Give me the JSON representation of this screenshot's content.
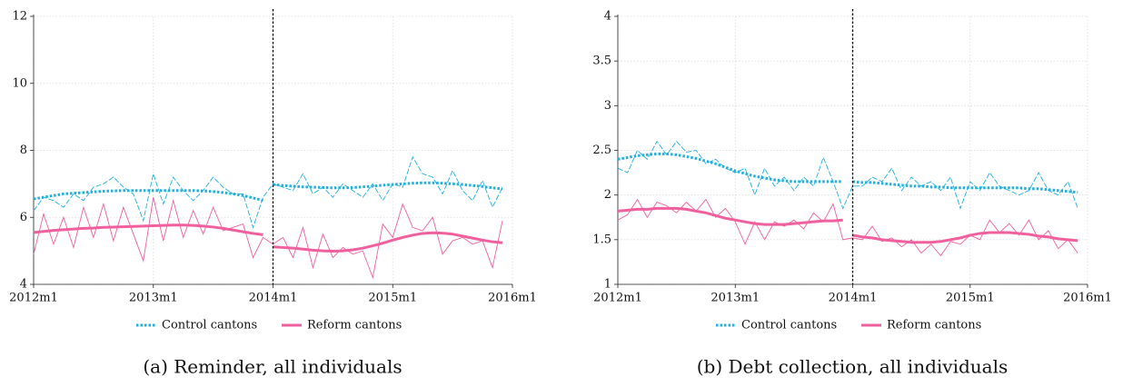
{
  "chart_data": [
    {
      "type": "line",
      "caption": "(a) Reminder, all individuals",
      "x": [
        624,
        625,
        626,
        627,
        628,
        629,
        630,
        631,
        632,
        633,
        634,
        635,
        636,
        637,
        638,
        639,
        640,
        641,
        642,
        643,
        644,
        645,
        646,
        647,
        648,
        649,
        650,
        651,
        652,
        653,
        654,
        655,
        656,
        657,
        658,
        659,
        660,
        661,
        662,
        663,
        664,
        665,
        666,
        667,
        668,
        669,
        670,
        671
      ],
      "xlim": [
        624,
        672
      ],
      "xticks": [
        {
          "value": 624,
          "label": "2012m1"
        },
        {
          "value": 636,
          "label": "2013m1"
        },
        {
          "value": 648,
          "label": "2014m1"
        },
        {
          "value": 660,
          "label": "2015m1"
        },
        {
          "value": 672,
          "label": "2016m1"
        }
      ],
      "ylim": [
        4,
        12
      ],
      "yticks": [
        4,
        6,
        8,
        10,
        12
      ],
      "grid": true,
      "xline": 648,
      "series": [
        {
          "name": "Control cantons",
          "color": "#1fb0e0",
          "style": "dotted",
          "values": [
            6.2,
            6.6,
            6.5,
            6.3,
            6.7,
            6.5,
            6.9,
            7.0,
            7.2,
            6.9,
            6.7,
            5.9,
            7.3,
            6.4,
            7.2,
            6.8,
            6.5,
            6.8,
            7.2,
            6.9,
            6.7,
            6.7,
            5.7,
            6.6,
            7.0,
            6.9,
            6.8,
            7.3,
            6.7,
            6.9,
            6.6,
            7.0,
            6.8,
            6.6,
            7.0,
            6.5,
            7.0,
            6.9,
            7.8,
            7.3,
            7.2,
            6.7,
            7.4,
            6.8,
            6.5,
            7.1,
            6.3,
            6.9
          ],
          "fit": [
            6.55,
            6.6,
            6.65,
            6.7,
            6.72,
            6.74,
            6.76,
            6.78,
            6.79,
            6.8,
            6.8,
            6.8,
            6.8,
            6.8,
            6.8,
            6.8,
            6.8,
            6.79,
            6.77,
            6.74,
            6.7,
            6.65,
            6.58,
            6.5,
            6.98,
            6.95,
            6.93,
            6.91,
            6.9,
            6.89,
            6.88,
            6.88,
            6.89,
            6.91,
            6.93,
            6.96,
            6.98,
            7.0,
            7.02,
            7.03,
            7.03,
            7.02,
            7.0,
            6.98,
            6.95,
            6.92,
            6.88,
            6.85
          ]
        },
        {
          "name": "Reform cantons",
          "color": "#f0609e",
          "style": "solid",
          "values": [
            4.9,
            6.1,
            5.2,
            6.0,
            5.1,
            6.3,
            5.4,
            6.4,
            5.3,
            6.3,
            5.5,
            4.7,
            6.6,
            5.3,
            6.5,
            5.4,
            6.2,
            5.5,
            6.3,
            5.6,
            5.7,
            5.8,
            4.8,
            5.4,
            5.2,
            5.4,
            4.8,
            5.7,
            4.5,
            5.5,
            4.8,
            5.1,
            4.9,
            5.0,
            4.2,
            5.8,
            5.4,
            6.4,
            5.7,
            5.6,
            6.0,
            4.9,
            5.3,
            5.4,
            5.2,
            5.3,
            4.5,
            5.9
          ],
          "fit": [
            5.55,
            5.58,
            5.61,
            5.63,
            5.65,
            5.67,
            5.68,
            5.7,
            5.71,
            5.72,
            5.73,
            5.74,
            5.75,
            5.76,
            5.77,
            5.77,
            5.76,
            5.74,
            5.71,
            5.67,
            5.62,
            5.57,
            5.52,
            5.48,
            5.12,
            5.1,
            5.08,
            5.05,
            5.02,
            5.0,
            4.99,
            5.0,
            5.03,
            5.08,
            5.15,
            5.23,
            5.32,
            5.4,
            5.47,
            5.52,
            5.54,
            5.53,
            5.5,
            5.44,
            5.38,
            5.32,
            5.27,
            5.24
          ]
        }
      ]
    },
    {
      "type": "line",
      "caption": "(b) Debt collection, all individuals",
      "x": [
        624,
        625,
        626,
        627,
        628,
        629,
        630,
        631,
        632,
        633,
        634,
        635,
        636,
        637,
        638,
        639,
        640,
        641,
        642,
        643,
        644,
        645,
        646,
        647,
        648,
        649,
        650,
        651,
        652,
        653,
        654,
        655,
        656,
        657,
        658,
        659,
        660,
        661,
        662,
        663,
        664,
        665,
        666,
        667,
        668,
        669,
        670,
        671
      ],
      "xlim": [
        624,
        672
      ],
      "xticks": [
        {
          "value": 624,
          "label": "2012m1"
        },
        {
          "value": 636,
          "label": "2013m1"
        },
        {
          "value": 648,
          "label": "2014m1"
        },
        {
          "value": 660,
          "label": "2015m1"
        },
        {
          "value": 672,
          "label": "2016m1"
        }
      ],
      "ylim": [
        1,
        4
      ],
      "yticks": [
        1,
        1.5,
        2,
        2.5,
        3,
        3.5,
        4
      ],
      "grid": true,
      "xline": 648,
      "series": [
        {
          "name": "Control cantons",
          "color": "#1fb0e0",
          "style": "dotted",
          "values": [
            2.3,
            2.25,
            2.5,
            2.4,
            2.6,
            2.45,
            2.6,
            2.48,
            2.5,
            2.35,
            2.4,
            2.3,
            2.25,
            2.3,
            2.0,
            2.3,
            2.1,
            2.2,
            2.05,
            2.2,
            2.1,
            2.42,
            2.15,
            1.85,
            2.1,
            2.1,
            2.2,
            2.15,
            2.3,
            2.05,
            2.2,
            2.1,
            2.15,
            2.05,
            2.2,
            1.85,
            2.15,
            2.05,
            2.25,
            2.1,
            2.05,
            2.0,
            2.05,
            2.25,
            2.05,
            2.0,
            2.15,
            1.85
          ],
          "fit": [
            2.4,
            2.42,
            2.44,
            2.45,
            2.46,
            2.46,
            2.45,
            2.43,
            2.41,
            2.38,
            2.35,
            2.31,
            2.27,
            2.24,
            2.21,
            2.19,
            2.17,
            2.16,
            2.15,
            2.15,
            2.15,
            2.15,
            2.15,
            2.15,
            2.15,
            2.14,
            2.14,
            2.13,
            2.12,
            2.11,
            2.1,
            2.1,
            2.09,
            2.09,
            2.08,
            2.08,
            2.08,
            2.08,
            2.08,
            2.08,
            2.08,
            2.08,
            2.07,
            2.07,
            2.06,
            2.05,
            2.04,
            2.03
          ]
        },
        {
          "name": "Reform cantons",
          "color": "#f0609e",
          "style": "solid",
          "values": [
            1.72,
            1.78,
            1.95,
            1.75,
            1.92,
            1.88,
            1.8,
            1.92,
            1.82,
            1.95,
            1.75,
            1.85,
            1.7,
            1.45,
            1.7,
            1.5,
            1.7,
            1.65,
            1.72,
            1.62,
            1.8,
            1.7,
            1.9,
            1.5,
            1.52,
            1.5,
            1.65,
            1.48,
            1.52,
            1.42,
            1.5,
            1.35,
            1.45,
            1.32,
            1.48,
            1.45,
            1.55,
            1.5,
            1.72,
            1.58,
            1.68,
            1.55,
            1.72,
            1.5,
            1.6,
            1.4,
            1.5,
            1.35
          ],
          "fit": [
            1.82,
            1.83,
            1.84,
            1.84,
            1.85,
            1.85,
            1.85,
            1.84,
            1.82,
            1.8,
            1.77,
            1.74,
            1.72,
            1.7,
            1.68,
            1.67,
            1.67,
            1.67,
            1.68,
            1.69,
            1.7,
            1.71,
            1.71,
            1.72,
            1.55,
            1.53,
            1.52,
            1.5,
            1.49,
            1.48,
            1.47,
            1.47,
            1.47,
            1.48,
            1.5,
            1.52,
            1.55,
            1.57,
            1.58,
            1.58,
            1.58,
            1.57,
            1.56,
            1.54,
            1.53,
            1.51,
            1.5,
            1.49
          ]
        }
      ]
    }
  ]
}
